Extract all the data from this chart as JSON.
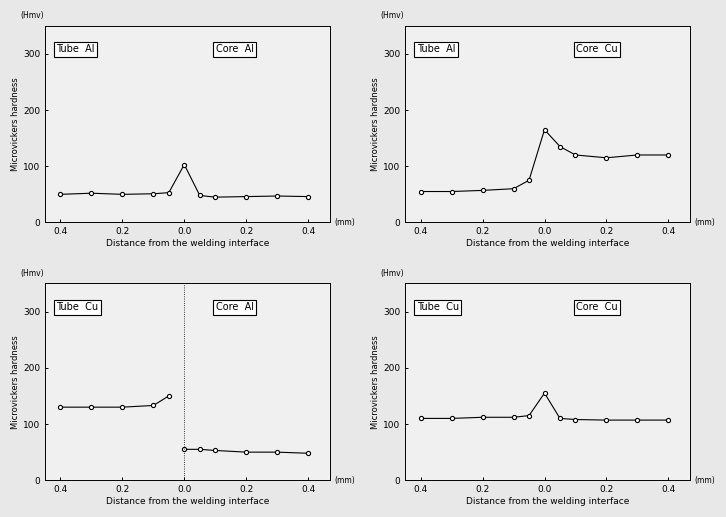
{
  "background_color": "#e8e8e8",
  "plot_bg_color": "#f0f0f0",
  "ylabel": "Microvickers hardness",
  "xlabel": "Distance from the welding interface",
  "yunits": "(Hmv)",
  "xunits": "(mm)",
  "subplots": [
    {
      "label_left": "Tube  Al",
      "label_right": "Core  Al",
      "ylim": [
        0,
        350
      ],
      "yticks": [
        0,
        100,
        200,
        300
      ],
      "x": [
        -0.4,
        -0.3,
        -0.2,
        -0.1,
        -0.05,
        0.0,
        0.05,
        0.1,
        0.2,
        0.3,
        0.4
      ],
      "y": [
        50,
        52,
        50,
        51,
        53,
        103,
        48,
        45,
        46,
        47,
        46
      ],
      "has_vline": false,
      "split": false
    },
    {
      "label_left": "Tube  Al",
      "label_right": "Core  Cu",
      "ylim": [
        0,
        350
      ],
      "yticks": [
        0,
        100,
        200,
        300
      ],
      "x": [
        -0.4,
        -0.3,
        -0.2,
        -0.1,
        -0.05,
        0.0,
        0.05,
        0.1,
        0.2,
        0.3,
        0.4
      ],
      "y": [
        55,
        55,
        57,
        60,
        75,
        165,
        135,
        120,
        115,
        120,
        120
      ],
      "has_vline": false,
      "split": false
    },
    {
      "label_left": "Tube  Cu",
      "label_right": "Core  Al",
      "ylim": [
        0,
        350
      ],
      "yticks": [
        0,
        100,
        200,
        300
      ],
      "x_left": [
        -0.4,
        -0.3,
        -0.2,
        -0.1,
        -0.05
      ],
      "y_left": [
        130,
        130,
        130,
        133,
        150
      ],
      "x_right": [
        0.0,
        0.05,
        0.1,
        0.2,
        0.3,
        0.4
      ],
      "y_right": [
        55,
        55,
        53,
        50,
        50,
        48
      ],
      "has_vline": true,
      "split": true
    },
    {
      "label_left": "Tube  Cu",
      "label_right": "Core  Cu",
      "ylim": [
        0,
        350
      ],
      "yticks": [
        0,
        100,
        200,
        300
      ],
      "x": [
        -0.4,
        -0.3,
        -0.2,
        -0.1,
        -0.05,
        0.0,
        0.05,
        0.1,
        0.2,
        0.3,
        0.4
      ],
      "y": [
        110,
        110,
        112,
        112,
        115,
        155,
        110,
        108,
        107,
        107,
        107
      ],
      "has_vline": false,
      "split": false
    }
  ],
  "xticks": [
    -0.4,
    -0.2,
    0.0,
    0.2,
    0.4
  ],
  "xticklabels": [
    "0.4",
    "0.2",
    "0.0",
    "0.2",
    "0.4"
  ]
}
